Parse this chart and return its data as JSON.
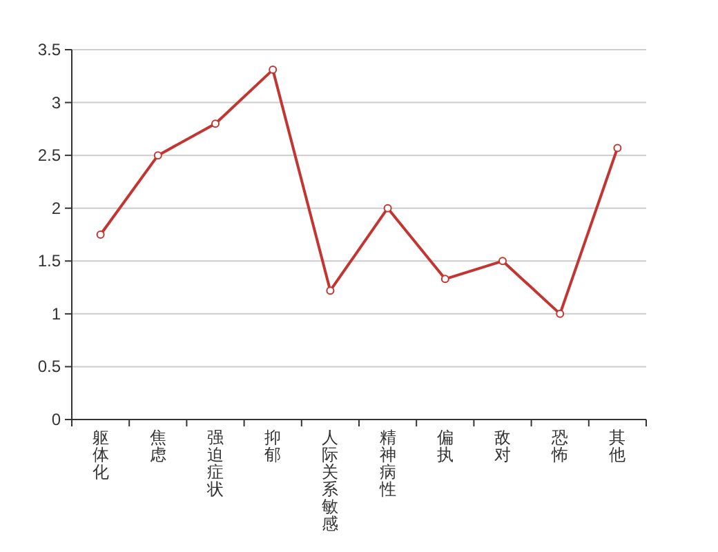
{
  "chart_data": {
    "type": "line",
    "categories": [
      "躯体化",
      "焦虑",
      "强迫症状",
      "抑郁",
      "人际关系敏感",
      "精神病性",
      "偏执",
      "敌对",
      "恐怖",
      "其他"
    ],
    "series": [
      {
        "color": "#c23531",
        "values": [
          1.75,
          2.5,
          2.8,
          3.31,
          1.22,
          2.0,
          1.33,
          1.5,
          1.0,
          2.57
        ]
      }
    ],
    "ylim": [
      0,
      3.5
    ],
    "yticks": [
      0,
      0.5,
      1,
      1.5,
      2,
      2.5,
      3,
      3.5
    ],
    "grid": "y",
    "marker": "circle"
  }
}
